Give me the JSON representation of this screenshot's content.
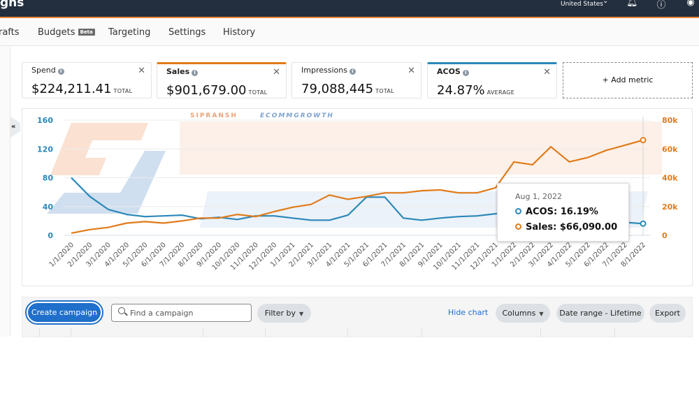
{
  "header": {
    "title_fragment": "gns",
    "locale": "United States",
    "icons": [
      "bell-icon",
      "help-icon",
      "account-icon"
    ]
  },
  "nav": {
    "tabs": [
      {
        "label": "rafts"
      },
      {
        "label": "Budgets",
        "badge": "Beta"
      },
      {
        "label": "Targeting"
      },
      {
        "label": "Settings"
      },
      {
        "label": "History"
      }
    ]
  },
  "collapse_label": "«",
  "metrics": [
    {
      "name": "Spend",
      "value": "$224,211.41",
      "unit": "TOTAL",
      "accent": ""
    },
    {
      "name": "Sales",
      "value": "$901,679.00",
      "unit": "TOTAL",
      "accent": "#e07b1a"
    },
    {
      "name": "Impressions",
      "value": "79,088,445",
      "unit": "TOTAL",
      "accent": ""
    },
    {
      "name": "ACOS",
      "value": "24.87%",
      "unit": "AVERAGE",
      "accent": "#2b88b9"
    }
  ],
  "add_metric_label": "+ Add metric",
  "watermark": {
    "line1": "SIPRANSH",
    "line2": "ECOMMGROWTH"
  },
  "chart_data": {
    "type": "line",
    "title": "",
    "x": [
      "1/1/2020",
      "2/1/2020",
      "3/1/2020",
      "4/1/2020",
      "5/1/2020",
      "6/1/2020",
      "7/1/2020",
      "8/1/2020",
      "9/1/2020",
      "10/1/2020",
      "11/1/2020",
      "12/1/2020",
      "1/1/2021",
      "2/1/2021",
      "3/1/2021",
      "4/1/2021",
      "5/1/2021",
      "6/1/2021",
      "7/1/2021",
      "8/1/2021",
      "9/1/2021",
      "10/1/2021",
      "11/1/2021",
      "12/1/2021",
      "1/1/2022",
      "2/1/2022",
      "3/1/2022",
      "4/1/2022",
      "5/1/2022",
      "6/1/2022",
      "7/1/2022",
      "8/1/2022"
    ],
    "left_axis": {
      "ticks": [
        "0",
        "40",
        "80",
        "120",
        "160"
      ],
      "range": [
        0,
        160
      ],
      "color": "#2b88b9"
    },
    "right_axis": {
      "ticks": [
        "0",
        "20k",
        "40k",
        "60k",
        "80k"
      ],
      "range": [
        0,
        80000
      ],
      "color": "#e07b1a"
    },
    "grid": true,
    "series": [
      {
        "name": "ACOS",
        "axis": "left",
        "color": "#2b88b9",
        "values": [
          80,
          54,
          36,
          29,
          26,
          27,
          28,
          23,
          25,
          22,
          27,
          27,
          24,
          21,
          21,
          28,
          53,
          53,
          24,
          21,
          24,
          26,
          27,
          30,
          32,
          30,
          27,
          25,
          22,
          20,
          18,
          16.19
        ]
      },
      {
        "name": "Sales",
        "axis": "right",
        "color": "#e07b1a",
        "values": [
          1500,
          4000,
          5500,
          8500,
          9500,
          8500,
          10000,
          12000,
          12000,
          14500,
          13000,
          16500,
          19500,
          21500,
          28000,
          25000,
          27000,
          29500,
          29500,
          31000,
          31500,
          29500,
          29500,
          33000,
          51000,
          49000,
          61500,
          51000,
          54000,
          59000,
          62500,
          66090
        ]
      }
    ],
    "tooltip": {
      "date": "Aug 1, 2022",
      "rows": [
        {
          "label": "ACOS: 16.19%",
          "color": "#2b88b9"
        },
        {
          "label": "Sales: $66,090.00",
          "color": "#e07b1a"
        }
      ]
    }
  },
  "toolbar": {
    "create_label": "Create campaign",
    "search_placeholder": "Find a campaign",
    "filter_label": "Filter by",
    "hide_chart_label": "Hide chart",
    "columns_label": "Columns",
    "date_range_label": "Date range - Lifetime",
    "export_label": "Export"
  }
}
